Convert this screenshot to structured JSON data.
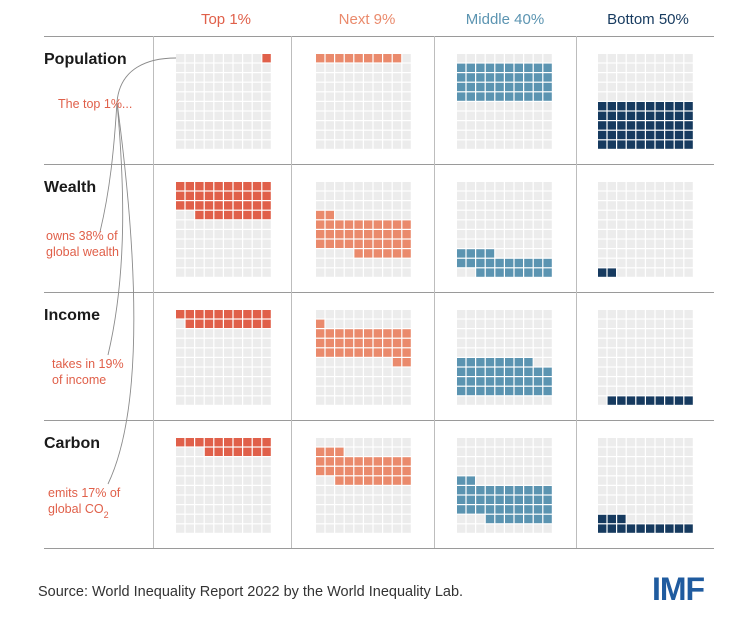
{
  "chart_data": {
    "type": "waffle",
    "columns": [
      "Top 1%",
      "Next 9%",
      "Middle 40%",
      "Bottom 50%"
    ],
    "rows": [
      "Population",
      "Wealth",
      "Income",
      "Carbon"
    ],
    "values": {
      "Population": [
        1,
        9,
        40,
        50
      ],
      "Wealth": [
        38,
        38,
        22,
        2
      ],
      "Income": [
        19,
        33,
        38,
        9
      ],
      "Carbon": [
        17,
        31,
        39,
        13
      ]
    },
    "annotations": [
      "The top 1%...",
      "owns 38% of",
      "global wealth",
      "takes in 19%",
      "of income",
      "emits 17% of",
      "global CO",
      "2"
    ],
    "colors": {
      "Top 1%": "#e0604a",
      "Next 9%": "#ea8a6c",
      "Middle 40%": "#5b94b1",
      "Bottom 50%": "#163a5f",
      "empty": "#ececec"
    }
  },
  "footer": {
    "source": "Source: World Inequality Report 2022 by the World Inequality Lab.",
    "logo": "IMF"
  }
}
